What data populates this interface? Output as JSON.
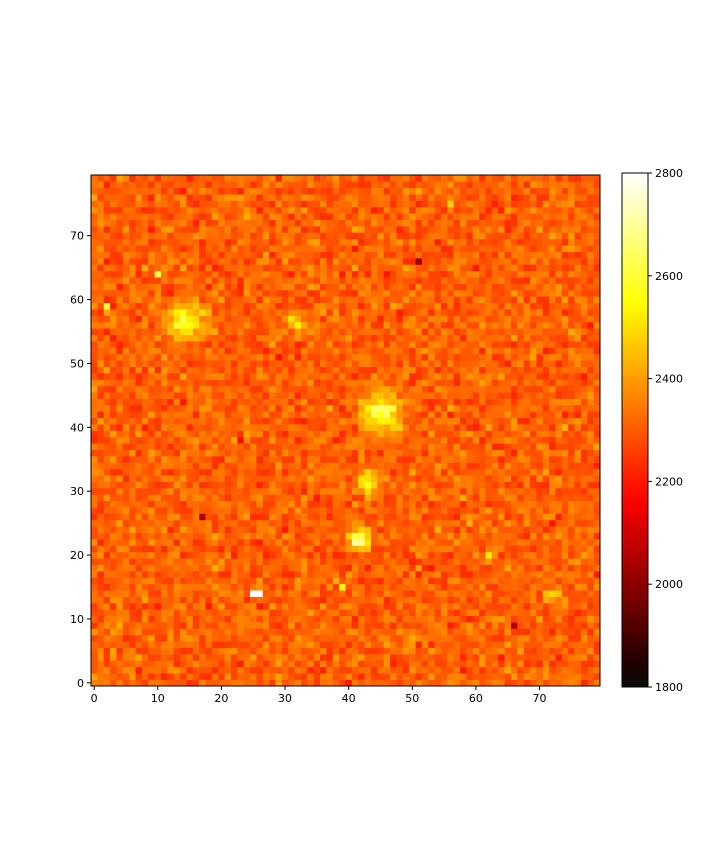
{
  "chart_data": {
    "type": "heatmap",
    "title": "",
    "xlabel": "",
    "ylabel": "",
    "grid_size": [
      80,
      80
    ],
    "xlim": [
      -0.5,
      79.5
    ],
    "ylim": [
      -0.5,
      79.5
    ],
    "origin": "lower",
    "colormap": "hot",
    "color_range": [
      1800,
      2800
    ],
    "background_level": 2310,
    "noise_amplitude": 70,
    "x_ticks": [
      0,
      10,
      20,
      30,
      40,
      50,
      60,
      70
    ],
    "y_ticks": [
      0,
      10,
      20,
      30,
      40,
      50,
      60,
      70
    ],
    "colorbar_ticks": [
      1800,
      2000,
      2200,
      2400,
      2600,
      2800
    ],
    "grid": false,
    "legend": "none",
    "colorbar_position": "right",
    "sources": [
      {
        "x": 14.5,
        "y": 56.5,
        "peak": 2580,
        "radius": 2.2
      },
      {
        "x": 32,
        "y": 56.5,
        "peak": 2480,
        "radius": 1.0
      },
      {
        "x": 45,
        "y": 42.5,
        "peak": 2620,
        "radius": 2.0
      },
      {
        "x": 43,
        "y": 31.5,
        "peak": 2580,
        "radius": 1.3
      },
      {
        "x": 41.5,
        "y": 22.5,
        "peak": 2700,
        "radius": 1.2
      },
      {
        "x": 72,
        "y": 13.5,
        "peak": 2430,
        "radius": 1.2
      }
    ],
    "hot_pixels": [
      {
        "x": 25,
        "y": 14,
        "value": 2800
      },
      {
        "x": 26,
        "y": 14,
        "value": 2800
      },
      {
        "x": 10,
        "y": 64,
        "value": 2620
      },
      {
        "x": 2,
        "y": 59,
        "value": 2600
      },
      {
        "x": 62,
        "y": 20,
        "value": 2520
      },
      {
        "x": 39,
        "y": 15,
        "value": 2540
      },
      {
        "x": 56,
        "y": 75,
        "value": 2480
      }
    ],
    "cold_pixels": [
      {
        "x": 51,
        "y": 66,
        "value": 2020
      },
      {
        "x": 17,
        "y": 26,
        "value": 2050
      },
      {
        "x": 66,
        "y": 9,
        "value": 2060
      }
    ]
  }
}
